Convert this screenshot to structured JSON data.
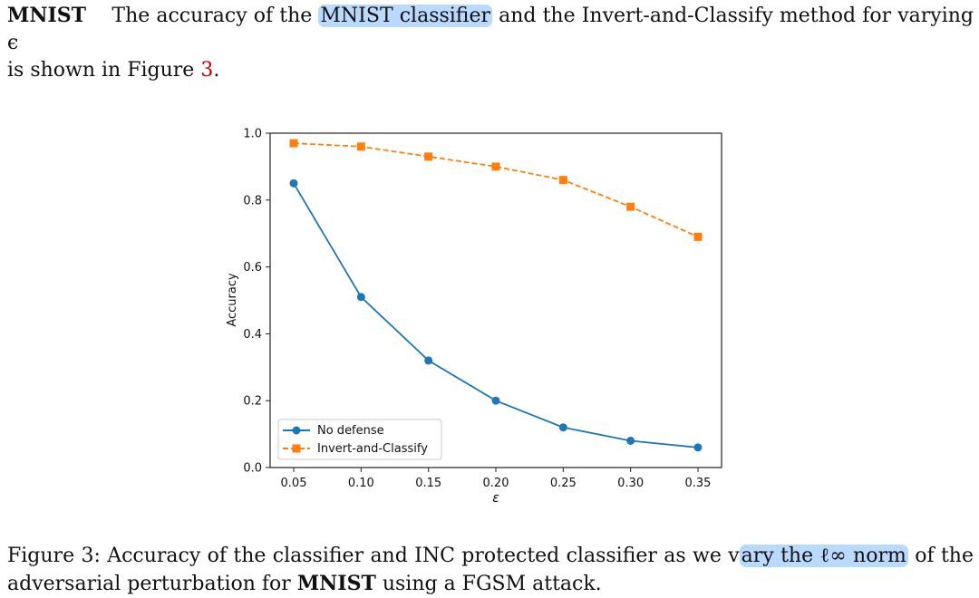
{
  "intro": {
    "heading": "MNIST",
    "text_before_highlight": "The accuracy of the",
    "highlight": "MNIST classifier",
    "text_after_highlight": "and the Invert-and-Classify method for varying",
    "symbol": "ϵ",
    "text_line2_before_ref": "is shown in Figure",
    "figure_ref": "3",
    "text_line2_after_ref": "."
  },
  "caption": {
    "label": "Figure 3:",
    "text_before_highlight": "Accuracy of the classifier and INC protected classifier as we v",
    "highlight": "ary the ℓ∞ norm",
    "text_mid": "of the adversarial perturbation for",
    "bold_word": "MNIST",
    "text_end": "using a FGSM attack."
  },
  "chart_data": {
    "type": "line",
    "xlabel": "ε",
    "ylabel": "Accuracy",
    "x": [
      0.05,
      0.1,
      0.15,
      0.2,
      0.25,
      0.3,
      0.35
    ],
    "x_ticks": [
      "0.05",
      "0.10",
      "0.15",
      "0.20",
      "0.25",
      "0.30",
      "0.35"
    ],
    "y_ticks": [
      "0.0",
      "0.2",
      "0.4",
      "0.6",
      "0.8",
      "1.0"
    ],
    "xlim": [
      0.0325,
      0.3675
    ],
    "ylim": [
      0.0,
      1.0
    ],
    "grid": false,
    "legend_position": "lower-left",
    "series": [
      {
        "name": "No defense",
        "values": [
          0.85,
          0.51,
          0.32,
          0.2,
          0.12,
          0.08,
          0.06
        ],
        "color": "#1f77b4",
        "marker": "circle",
        "linestyle": "solid"
      },
      {
        "name": "Invert-and-Classify",
        "values": [
          0.97,
          0.96,
          0.93,
          0.9,
          0.86,
          0.78,
          0.69
        ],
        "color": "#ff7f0e",
        "marker": "square",
        "linestyle": "dashed"
      }
    ]
  }
}
